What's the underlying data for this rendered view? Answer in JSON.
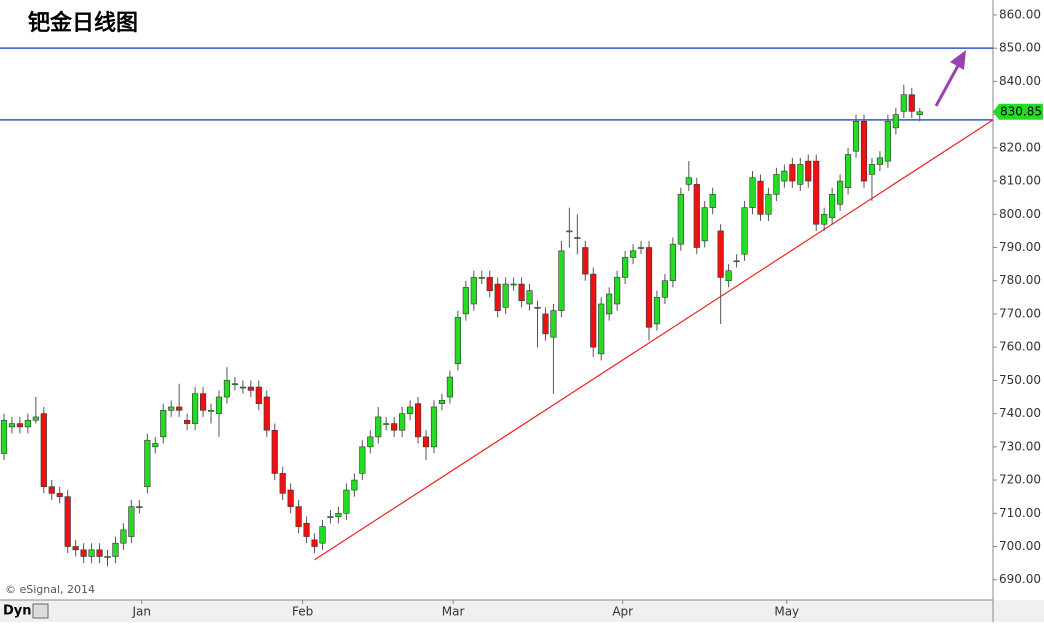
{
  "chart_data": {
    "type": "candlestick",
    "title": "钯金日线图",
    "source": "© eSignal, 2014",
    "toolbar_label": "Dyn",
    "up_color": "#22dd22",
    "down_color": "#ee1111",
    "line_color": "#3355cc",
    "trend_color": "#ee2222",
    "open": [
      728,
      736,
      737,
      736,
      738,
      740,
      718,
      716,
      715,
      700,
      699,
      697,
      699,
      697,
      697,
      701,
      703,
      712,
      718,
      730,
      733,
      741,
      742,
      738,
      737,
      746,
      741,
      740,
      745,
      749,
      748,
      748,
      748,
      745,
      735,
      722,
      717,
      712,
      707,
      702,
      701,
      709,
      709,
      710,
      717,
      722,
      730,
      733,
      737,
      737,
      735,
      740,
      743,
      733,
      730,
      743,
      745,
      755,
      770,
      773,
      781,
      781,
      779,
      772,
      779,
      779,
      773,
      772,
      770,
      763,
      771,
      795,
      793,
      790,
      782,
      758,
      770,
      773,
      781,
      787,
      790,
      790,
      767,
      775,
      780,
      791,
      809,
      809,
      792,
      802,
      795,
      780,
      786,
      788,
      802,
      810,
      800,
      806,
      810,
      815,
      809,
      816,
      816,
      797,
      799,
      803,
      808,
      819,
      828,
      812,
      815,
      816,
      826,
      831,
      836,
      830
    ],
    "high": [
      740,
      739,
      739,
      740,
      745,
      742,
      720,
      718,
      717,
      702,
      701,
      701,
      701,
      699,
      703,
      707,
      714,
      714,
      734,
      733,
      743,
      744,
      749,
      740,
      748,
      748,
      743,
      747,
      754,
      751,
      750,
      750,
      750,
      747,
      737,
      724,
      719,
      714,
      709,
      704,
      708,
      711,
      712,
      719,
      722,
      732,
      735,
      742,
      739,
      739,
      742,
      744,
      745,
      735,
      744,
      746,
      753,
      771,
      780,
      783,
      783,
      783,
      781,
      781,
      781,
      781,
      779,
      774,
      772,
      773,
      792,
      802,
      800,
      792,
      784,
      775,
      778,
      783,
      789,
      791,
      792,
      792,
      777,
      782,
      793,
      808,
      816,
      811,
      804,
      808,
      797,
      785,
      788,
      804,
      813,
      812,
      808,
      814,
      815,
      817,
      817,
      818,
      818,
      802,
      808,
      812,
      820,
      830,
      830,
      817,
      819,
      830,
      832,
      839,
      838,
      832
    ],
    "low": [
      726,
      734,
      734,
      734,
      737,
      716,
      714,
      713,
      698,
      697,
      695,
      695,
      695,
      694,
      695,
      699,
      701,
      710,
      716,
      728,
      731,
      739,
      739,
      735,
      735,
      739,
      737,
      733,
      743,
      747,
      746,
      745,
      741,
      733,
      720,
      714,
      710,
      704,
      701,
      698,
      699,
      707,
      707,
      708,
      715,
      720,
      728,
      731,
      735,
      733,
      733,
      738,
      731,
      726,
      728,
      741,
      743,
      753,
      768,
      771,
      779,
      775,
      769,
      770,
      777,
      772,
      771,
      760,
      762,
      746,
      769,
      790,
      788,
      780,
      757,
      756,
      768,
      771,
      779,
      785,
      788,
      762,
      765,
      773,
      778,
      789,
      807,
      788,
      790,
      800,
      767,
      778,
      784,
      786,
      800,
      798,
      798,
      804,
      808,
      808,
      807,
      808,
      795,
      795,
      797,
      801,
      806,
      817,
      808,
      804,
      813,
      814,
      824,
      829,
      829,
      828
    ],
    "close": [
      738,
      737,
      736,
      738,
      739,
      718,
      716,
      715,
      700,
      699,
      697,
      699,
      697,
      697,
      701,
      705,
      712,
      712,
      732,
      731,
      741,
      742,
      741,
      737,
      746,
      741,
      741,
      745,
      750,
      749,
      748,
      747,
      743,
      735,
      722,
      716,
      712,
      706,
      703,
      700,
      706,
      709,
      710,
      717,
      720,
      730,
      733,
      739,
      737,
      735,
      740,
      742,
      733,
      730,
      742,
      744,
      751,
      769,
      778,
      781,
      781,
      777,
      771,
      779,
      779,
      774,
      777,
      772,
      764,
      771,
      789,
      795,
      793,
      782,
      760,
      773,
      776,
      781,
      787,
      789,
      790,
      766,
      775,
      780,
      791,
      806,
      811,
      790,
      802,
      806,
      781,
      783,
      786,
      802,
      811,
      800,
      806,
      812,
      813,
      810,
      815,
      810,
      797,
      800,
      806,
      810,
      818,
      828,
      810,
      815,
      817,
      828,
      830,
      836,
      831,
      830.85
    ],
    "xlim": [
      -0.5,
      124.2
    ],
    "xticks": [
      {
        "value": 17.3,
        "label": "Jan"
      },
      {
        "value": 37.5,
        "label": "Feb"
      },
      {
        "value": 56.4,
        "label": "Mar"
      },
      {
        "value": 77.7,
        "label": "Apr"
      },
      {
        "value": 98.3,
        "label": "May"
      }
    ],
    "ylim": [
      684.5,
      864.5
    ],
    "yticks": [
      {
        "value": 690,
        "label": "690.00"
      },
      {
        "value": 700,
        "label": "700.00"
      },
      {
        "value": 710,
        "label": "710.00"
      },
      {
        "value": 720,
        "label": "720.00"
      },
      {
        "value": 730,
        "label": "730.00"
      },
      {
        "value": 740,
        "label": "740.00"
      },
      {
        "value": 750,
        "label": "750.00"
      },
      {
        "value": 760,
        "label": "760.00"
      },
      {
        "value": 770,
        "label": "770.00"
      },
      {
        "value": 780,
        "label": "780.00"
      },
      {
        "value": 790,
        "label": "790.00"
      },
      {
        "value": 800,
        "label": "800.00"
      },
      {
        "value": 810,
        "label": "810.00"
      },
      {
        "value": 820,
        "label": "820.00"
      },
      {
        "value": 830,
        "label": "830.00"
      },
      {
        "value": 840,
        "label": "840.00"
      },
      {
        "value": 850,
        "label": "850.00"
      },
      {
        "value": 860,
        "label": "860.00"
      }
    ],
    "hlines": [
      850,
      828.4
    ],
    "trendline": {
      "x": [
        39,
        124.2
      ],
      "y": [
        696,
        828.4
      ]
    }
  }
}
